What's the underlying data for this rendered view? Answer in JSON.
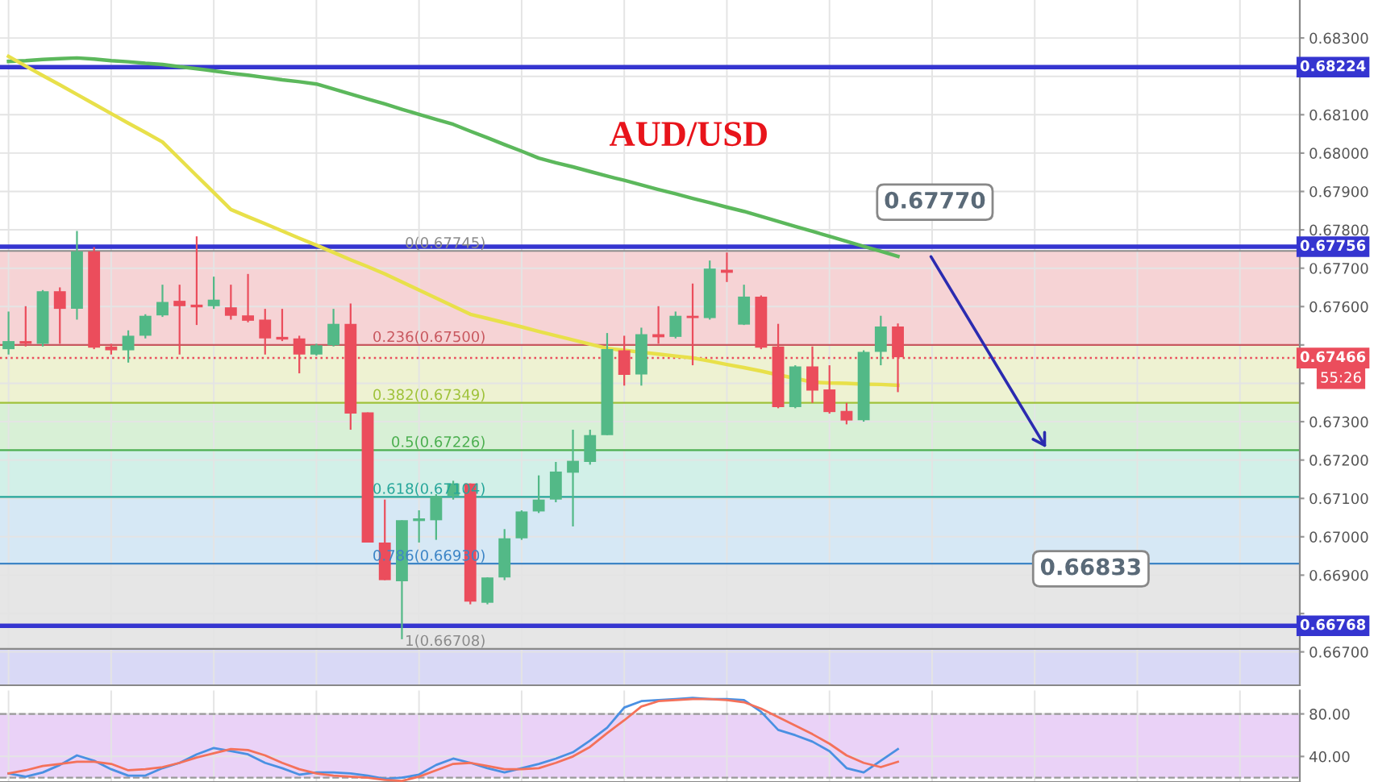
{
  "chart_data": [
    {
      "type": "candlestick",
      "title": "AUD/USD",
      "categories": [
        null,
        null,
        null,
        null,
        null,
        null,
        null,
        null,
        null,
        null,
        null,
        null,
        null,
        null,
        null,
        null,
        null,
        null,
        null,
        null,
        null,
        null,
        null,
        null,
        null,
        null,
        null,
        null,
        null,
        null,
        null,
        null,
        null,
        null,
        null,
        null,
        null,
        null,
        null,
        null,
        null,
        null,
        null,
        null,
        null,
        null,
        null,
        null,
        null,
        null,
        null,
        null,
        null,
        null,
        null,
        null,
        null,
        null,
        null,
        null,
        null,
        null,
        null,
        null,
        null,
        null,
        null,
        null,
        null,
        null,
        null,
        null,
        null,
        null,
        null,
        null
      ],
      "ohlc": [
        [
          0.67489,
          0.67587,
          0.67475,
          0.6751
        ],
        [
          0.6751,
          0.67601,
          0.67496,
          0.67503
        ],
        [
          0.67503,
          0.67643,
          0.67496,
          0.6764
        ],
        [
          0.6764,
          0.6765,
          0.67503,
          0.67594
        ],
        [
          0.67594,
          0.67797,
          0.67566,
          0.67744
        ],
        [
          0.67744,
          0.67755,
          0.67489,
          0.67493
        ],
        [
          0.67496,
          0.67503,
          0.67475,
          0.67486
        ],
        [
          0.67486,
          0.67538,
          0.67454,
          0.67524
        ],
        [
          0.67524,
          0.6758,
          0.67517,
          0.67576
        ],
        [
          0.67577,
          0.67657,
          0.67573,
          0.67612
        ],
        [
          0.67615,
          0.67657,
          0.67475,
          0.67601
        ],
        [
          0.67605,
          0.67783,
          0.67552,
          0.67598
        ],
        [
          0.67601,
          0.67678,
          0.67594,
          0.67618
        ],
        [
          0.67598,
          0.67657,
          0.67566,
          0.67576
        ],
        [
          0.67577,
          0.67685,
          0.67559,
          0.67563
        ],
        [
          0.67566,
          0.67594,
          0.67475,
          0.67517
        ],
        [
          0.67521,
          0.67594,
          0.6751,
          0.67514
        ],
        [
          0.67517,
          0.67524,
          0.67426,
          0.67475
        ],
        [
          0.67475,
          0.67503,
          0.67472,
          0.67499
        ],
        [
          0.67499,
          0.67594,
          0.67496,
          0.67555
        ],
        [
          0.67555,
          0.67608,
          0.67279,
          0.67321
        ],
        [
          0.67324,
          0.67324,
          0.66985,
          0.66985
        ],
        [
          0.66985,
          0.67097,
          0.66887,
          0.66887
        ],
        [
          0.66884,
          0.67043,
          0.66733,
          0.67043
        ],
        [
          0.67041,
          0.67069,
          0.66985,
          0.67048
        ],
        [
          0.67043,
          0.67111,
          0.66992,
          0.67106
        ],
        [
          0.67106,
          0.67146,
          0.67097,
          0.67139
        ],
        [
          0.67139,
          0.67139,
          0.66824,
          0.66831
        ],
        [
          0.66828,
          0.66894,
          0.66824,
          0.66894
        ],
        [
          0.66894,
          0.6702,
          0.66887,
          0.66996
        ],
        [
          0.66996,
          0.67069,
          0.66992,
          0.67066
        ],
        [
          0.67066,
          0.6716,
          0.67062,
          0.67097
        ],
        [
          0.67097,
          0.67195,
          0.6709,
          0.6717
        ],
        [
          0.67167,
          0.67279,
          0.67027,
          0.67198
        ],
        [
          0.67195,
          0.67279,
          0.67188,
          0.67265
        ],
        [
          0.67265,
          0.67531,
          0.67265,
          0.67489
        ],
        [
          0.67486,
          0.67524,
          0.67394,
          0.67422
        ],
        [
          0.67423,
          0.67545,
          0.67394,
          0.67528
        ],
        [
          0.67528,
          0.67601,
          0.67503,
          0.6752
        ],
        [
          0.67521,
          0.67587,
          0.67517,
          0.67576
        ],
        [
          0.67576,
          0.6766,
          0.67447,
          0.6757
        ],
        [
          0.6757,
          0.6772,
          0.67566,
          0.67699
        ],
        [
          0.67696,
          0.67741,
          0.67664,
          0.67688
        ],
        [
          0.67553,
          0.67657,
          0.67552,
          0.67626
        ],
        [
          0.67626,
          0.67629,
          0.67489,
          0.67493
        ],
        [
          0.67496,
          0.67555,
          0.67335,
          0.67338
        ],
        [
          0.67338,
          0.67447,
          0.67335,
          0.67444
        ],
        [
          0.67444,
          0.67496,
          0.67349,
          0.67381
        ],
        [
          0.67384,
          0.67447,
          0.67321,
          0.67325
        ],
        [
          0.67328,
          0.67349,
          0.67293,
          0.67303
        ],
        [
          0.67304,
          0.67486,
          0.673,
          0.67482
        ],
        [
          0.67482,
          0.67576,
          0.67447,
          0.67548
        ],
        [
          0.67548,
          0.67556,
          0.67377,
          0.67468
        ],
        null,
        null,
        null,
        null,
        null,
        null,
        null,
        null,
        null,
        null,
        null,
        null,
        null,
        null,
        null,
        null,
        null,
        null,
        null,
        null,
        null,
        null,
        null
      ],
      "colors": [
        "#53b987",
        "#eb4d5c",
        "#53b987",
        "#eb4d5c",
        "#53b987",
        "#eb4d5c",
        "#eb4d5c",
        "#53b987",
        "#53b987",
        "#53b987",
        "#eb4d5c",
        "#eb4d5c",
        "#53b987",
        "#eb4d5c",
        "#eb4d5c",
        "#eb4d5c",
        "#eb4d5c",
        "#eb4d5c",
        "#53b987",
        "#53b987",
        "#eb4d5c",
        "#eb4d5c",
        "#eb4d5c",
        "#53b987",
        "#53b987",
        "#53b987",
        "#53b987",
        "#eb4d5c",
        "#53b987",
        "#53b987",
        "#53b987",
        "#53b987",
        "#53b987",
        "#53b987",
        "#53b987",
        "#53b987",
        "#eb4d5c",
        "#53b987",
        "#eb4d5c",
        "#53b987",
        "#eb4d5c",
        "#53b987",
        "#eb4d5c",
        "#53b987",
        "#eb4d5c",
        "#eb4d5c",
        "#53b987",
        "#eb4d5c",
        "#eb4d5c",
        "#eb4d5c",
        "#53b987",
        "#53b987",
        "#eb4d5c",
        null,
        null,
        null,
        null,
        null,
        null,
        null,
        null,
        null,
        null,
        null,
        null,
        null,
        null,
        null,
        null,
        null,
        null,
        null,
        null,
        null,
        null,
        null
      ],
      "series": [
        {
          "type": "line",
          "color": "#5cb85c",
          "values": [
            0.68239,
            0.68241,
            0.68244,
            0.68246,
            0.68248,
            0.68245,
            0.68241,
            0.68238,
            0.68234,
            0.68231,
            0.68225,
            0.6822,
            0.68214,
            0.68208,
            0.68203,
            0.68197,
            0.68191,
            0.68186,
            0.6818,
            0.68167,
            0.68154,
            0.68141,
            0.68128,
            0.68114,
            0.68101,
            0.68088,
            0.68075,
            0.68057,
            0.6804,
            0.68022,
            0.68005,
            0.67987,
            0.67975,
            0.67964,
            0.67952,
            0.6794,
            0.67929,
            0.67917,
            0.67905,
            0.67894,
            0.67882,
            0.67871,
            0.67859,
            0.67848,
            0.67835,
            0.67822,
            0.67809,
            0.67796,
            0.67783,
            0.6777,
            0.67757,
            0.67744,
            0.67731,
            null,
            null,
            null,
            null,
            null,
            null,
            null,
            null,
            null,
            null,
            null,
            null,
            null,
            null,
            null,
            null,
            null,
            null,
            null,
            null,
            null,
            null,
            null
          ]
        },
        {
          "type": "line",
          "color": "#e8e04a",
          "values": [
            0.68252,
            0.68227,
            0.68202,
            0.68178,
            0.68153,
            0.68128,
            0.68103,
            0.68078,
            0.68054,
            0.68029,
            0.67985,
            0.67941,
            0.67897,
            0.67853,
            0.67834,
            0.67816,
            0.67797,
            0.67778,
            0.6776,
            0.67741,
            0.67722,
            0.67704,
            0.67685,
            0.67664,
            0.67643,
            0.67622,
            0.67601,
            0.6758,
            0.67569,
            0.67558,
            0.67547,
            0.67535,
            0.67524,
            0.67513,
            0.67502,
            0.67491,
            0.67486,
            0.67481,
            0.67476,
            0.67471,
            0.67466,
            0.67458,
            0.67449,
            0.67441,
            0.67432,
            0.67422,
            0.67413,
            0.67403,
            0.67401,
            0.674,
            0.67398,
            0.67397,
            0.67395,
            null,
            null,
            null,
            null,
            null,
            null,
            null,
            null,
            null,
            null,
            null,
            null,
            null,
            null,
            null,
            null,
            null,
            null,
            null,
            null,
            null,
            null,
            null
          ]
        }
      ],
      "ylim": [
        0.66613,
        0.68399
      ],
      "yticks": [
        {
          "value": 0.667,
          "label": "0.66700"
        },
        {
          "value": 0.668,
          "label": null
        },
        {
          "value": 0.669,
          "label": "0.66900"
        },
        {
          "value": 0.67,
          "label": "0.67000"
        },
        {
          "value": 0.671,
          "label": "0.67100"
        },
        {
          "value": 0.672,
          "label": "0.67200"
        },
        {
          "value": 0.673,
          "label": "0.67300"
        },
        {
          "value": 0.674,
          "label": null
        },
        {
          "value": 0.675,
          "label": null
        },
        {
          "value": 0.676,
          "label": "0.67600"
        },
        {
          "value": 0.677,
          "label": "0.67700"
        },
        {
          "value": 0.678,
          "label": "0.67800"
        },
        {
          "value": 0.679,
          "label": "0.67900"
        },
        {
          "value": 0.68,
          "label": "0.68000"
        },
        {
          "value": 0.681,
          "label": "0.68100"
        },
        {
          "value": 0.682,
          "label": null
        },
        {
          "value": 0.683,
          "label": "0.68300"
        }
      ],
      "bands": [
        {
          "axis": "y",
          "from": 0.675,
          "to": 0.67745,
          "color": "#f6d3d5"
        },
        {
          "axis": "y",
          "from": 0.67349,
          "to": 0.675,
          "color": "#eef2d2"
        },
        {
          "axis": "y",
          "from": 0.67226,
          "to": 0.67349,
          "color": "#d8f0d6"
        },
        {
          "axis": "y",
          "from": 0.67104,
          "to": 0.67226,
          "color": "#d2f0e8"
        },
        {
          "axis": "y",
          "from": 0.6693,
          "to": 0.67104,
          "color": "#d6e8f5"
        },
        {
          "axis": "y",
          "from": 0.66708,
          "to": 0.6693,
          "color": "#e6e6e6"
        },
        {
          "axis": "y",
          "from": 0.66613,
          "to": 0.66708,
          "color": "#d9d9f6"
        }
      ],
      "ref_lines": [
        {
          "axis": "y",
          "value": 0.68224,
          "label": "0.68224",
          "color": "#3535d0",
          "line_style": "solid"
        },
        {
          "axis": "y",
          "value": 0.67756,
          "label": "0.67756",
          "color": "#3535d0",
          "line_style": "solid"
        },
        {
          "axis": "y",
          "value": 0.66768,
          "label": "0.66768",
          "color": "#3535d0",
          "line_style": "solid"
        },
        {
          "axis": "y",
          "value": 0.67466,
          "label": "0.67466",
          "color": "#eb4d5c",
          "line_style": "dotted"
        },
        {
          "axis": "y",
          "value": 0.67745,
          "label": "0(0.67745)",
          "color": "#8a8a8a"
        },
        {
          "axis": "y",
          "value": 0.675,
          "label": "0.236(0.67500)",
          "color": "#c8585f"
        },
        {
          "axis": "y",
          "value": 0.67349,
          "label": "0.382(0.67349)",
          "color": "#9fc23a"
        },
        {
          "axis": "y",
          "value": 0.67226,
          "label": "0.5(0.67226)",
          "color": "#4caf50"
        },
        {
          "axis": "y",
          "value": 0.67104,
          "label": "0.618(0.67104)",
          "color": "#26a69a"
        },
        {
          "axis": "y",
          "value": 0.6693,
          "label": "0.786(0.66930)",
          "color": "#3d85c6"
        },
        {
          "axis": "y",
          "value": 0.66708,
          "label": "1(0.66708)",
          "color": "#8a8a8a"
        }
      ],
      "annotations": [
        "0.67770",
        "0.66833",
        "55:26"
      ],
      "grid": true,
      "tick_labels": "y"
    },
    {
      "type": "line",
      "categories": [
        null,
        null,
        null,
        null,
        null,
        null,
        null,
        null,
        null,
        null,
        null,
        null,
        null,
        null,
        null,
        null,
        null,
        null,
        null,
        null,
        null,
        null,
        null,
        null,
        null,
        null,
        null,
        null,
        null,
        null,
        null,
        null,
        null,
        null,
        null,
        null,
        null,
        null,
        null,
        null,
        null,
        null,
        null,
        null,
        null,
        null,
        null,
        null,
        null,
        null,
        null,
        null,
        null,
        null,
        null,
        null,
        null,
        null,
        null,
        null,
        null,
        null,
        null,
        null,
        null,
        null,
        null,
        null,
        null,
        null,
        null,
        null,
        null,
        null,
        null,
        null
      ],
      "series": [
        {
          "color": "#4a90e2",
          "values": [
            24,
            21,
            25,
            32,
            41,
            36,
            28,
            22,
            22,
            29,
            34,
            42,
            48,
            45,
            42,
            34,
            29,
            23,
            25,
            25,
            24,
            22,
            19,
            20,
            23,
            32,
            38,
            34,
            29,
            25,
            29,
            33,
            38,
            44,
            55,
            67,
            86,
            92,
            93,
            94,
            95,
            94,
            94,
            93,
            82,
            65,
            60,
            54,
            45,
            29,
            25,
            36,
            47,
            null,
            null,
            null,
            null,
            null,
            null,
            null,
            null,
            null,
            null,
            null,
            null,
            null,
            null,
            null,
            null,
            null,
            null,
            null,
            null,
            null,
            null,
            null
          ]
        },
        {
          "color": "#f4715a",
          "values": [
            24,
            27,
            31,
            33,
            35,
            35,
            33,
            27,
            28,
            30,
            34,
            39,
            43,
            47,
            46,
            41,
            34,
            28,
            24,
            22,
            21,
            20,
            18,
            17,
            21,
            27,
            33,
            34,
            31,
            28,
            28,
            29,
            34,
            40,
            49,
            62,
            74,
            87,
            92,
            93,
            94,
            94,
            93,
            91,
            85,
            77,
            69,
            61,
            52,
            41,
            34,
            30,
            35,
            null,
            null,
            null,
            null,
            null,
            null,
            null,
            null,
            null,
            null,
            null,
            null,
            null,
            null,
            null,
            null,
            null,
            null,
            null,
            null,
            null,
            null,
            null
          ]
        }
      ],
      "ylim": [
        16,
        102
      ],
      "yticks": [
        {
          "value": 80,
          "label": "80.00"
        },
        {
          "value": 40,
          "label": "40.00"
        }
      ],
      "bands": [
        {
          "axis": "y",
          "from": 20,
          "to": 80,
          "color": "#ead2f7"
        }
      ],
      "ref_lines": [
        {
          "axis": "y",
          "value": 80,
          "color": "#9a9a9a",
          "line_style": "dashed"
        },
        {
          "axis": "y",
          "value": 20,
          "color": "#9a9a9a",
          "line_style": "dashed"
        }
      ],
      "grid": true,
      "tick_labels": "y"
    }
  ]
}
